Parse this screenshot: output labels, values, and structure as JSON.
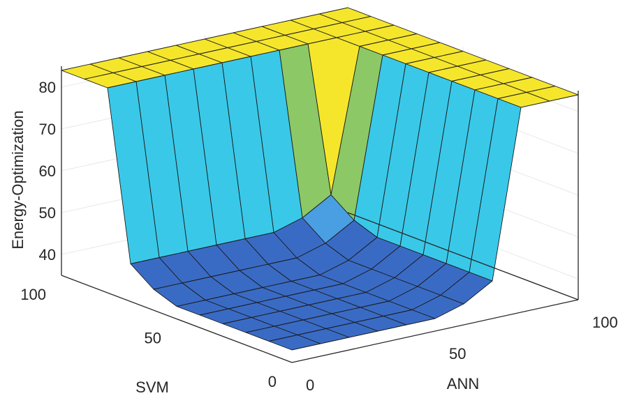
{
  "chart_data": {
    "type": "surface",
    "title": "",
    "xlabel": "ANN",
    "ylabel": "SVM",
    "zlabel": "Energy-Optimization",
    "xlim": [
      0,
      100
    ],
    "ylim": [
      0,
      100
    ],
    "zlim": [
      35,
      85
    ],
    "x_ticks": [
      "0",
      "50",
      "100"
    ],
    "y_ticks": [
      "0",
      "50",
      "100"
    ],
    "z_ticks": [
      "40",
      "50",
      "60",
      "70",
      "80"
    ],
    "grid": true,
    "colormap": [
      "#3a6bc4",
      "#4a9ee2",
      "#3ac8e8",
      "#8cc866",
      "#f5e62c"
    ],
    "grid_x": [
      0,
      10,
      20,
      30,
      40,
      50,
      60,
      70,
      80,
      90,
      100
    ],
    "grid_y": [
      0,
      10,
      20,
      30,
      40,
      50,
      60,
      70,
      80,
      90,
      100
    ],
    "surface_z": [
      [
        38,
        38,
        38,
        38,
        38,
        38,
        40,
        44,
        84,
        84,
        84
      ],
      [
        38,
        38,
        38,
        38,
        38,
        38,
        40,
        44,
        84,
        84,
        84
      ],
      [
        38,
        38,
        38,
        38,
        38,
        38,
        40,
        44,
        84,
        84,
        84
      ],
      [
        38,
        38,
        38,
        38,
        38,
        38,
        40,
        44,
        84,
        84,
        84
      ],
      [
        38,
        38,
        38,
        38,
        38,
        38,
        40,
        44,
        84,
        84,
        84
      ],
      [
        38,
        38,
        38,
        38,
        38,
        38,
        40,
        44,
        84,
        84,
        84
      ],
      [
        40,
        40,
        40,
        40,
        40,
        40,
        42,
        46,
        84,
        84,
        84
      ],
      [
        44,
        44,
        44,
        44,
        44,
        44,
        46,
        50,
        84,
        84,
        84
      ],
      [
        84,
        84,
        84,
        84,
        84,
        84,
        84,
        84,
        84,
        84,
        84
      ],
      [
        84,
        84,
        84,
        84,
        84,
        84,
        84,
        84,
        84,
        84,
        84
      ],
      [
        84,
        84,
        84,
        84,
        84,
        84,
        84,
        84,
        84,
        84,
        84
      ]
    ]
  }
}
